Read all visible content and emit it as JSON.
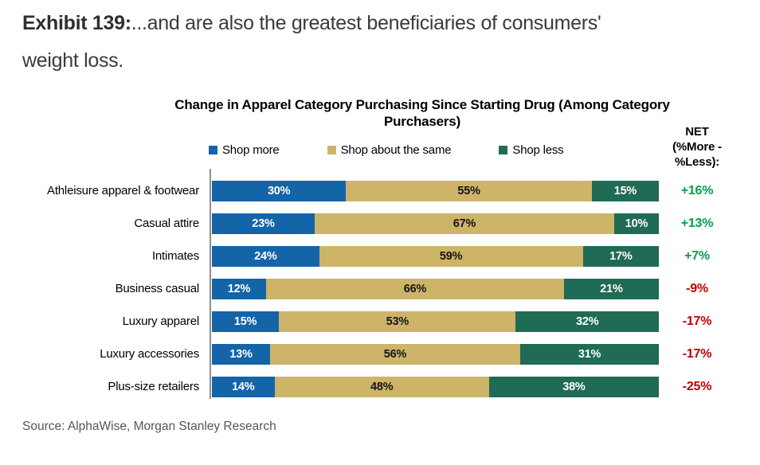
{
  "exhibit": {
    "label": "Exhibit 139:",
    "title_rest": "...and are also the greatest beneficiaries of consumers'\nweight loss."
  },
  "chart": {
    "title": "Change in Apparel Category Purchasing Since Starting Drug (Among Category\nPurchasers)",
    "net_header": "NET\n(%More -\n%Less):",
    "legend": [
      {
        "label": "Shop more",
        "color": "#1464A8"
      },
      {
        "label": "Shop about the same",
        "color": "#CDB468"
      },
      {
        "label": "Shop less",
        "color": "#206B55"
      }
    ]
  },
  "chart_data": {
    "type": "bar",
    "orientation": "horizontal",
    "stacked": true,
    "title": "Change in Apparel Category Purchasing Since Starting Drug (Among Category Purchasers)",
    "unit": "%",
    "xlim": [
      0,
      100
    ],
    "grid": false,
    "legend_position": "top",
    "categories": [
      "Athleisure apparel & footwear",
      "Casual attire",
      "Intimates",
      "Business casual",
      "Luxury apparel",
      "Luxury accessories",
      "Plus-size retailers"
    ],
    "series": [
      {
        "name": "Shop more",
        "color": "#1464A8",
        "values": [
          30,
          23,
          24,
          12,
          15,
          13,
          14
        ]
      },
      {
        "name": "Shop about the same",
        "color": "#CDB468",
        "values": [
          55,
          67,
          59,
          66,
          53,
          56,
          48
        ]
      },
      {
        "name": "Shop less",
        "color": "#206B55",
        "values": [
          15,
          10,
          17,
          21,
          32,
          31,
          38
        ]
      }
    ],
    "net": {
      "label": "NET (%More - %Less):",
      "values": [
        "+16%",
        "+13%",
        "+7%",
        "-9%",
        "-17%",
        "-17%",
        "-25%"
      ]
    }
  },
  "colors": {
    "net_positive": "#00A14B",
    "net_negative": "#C00000",
    "axis_line": "#8f8f8f"
  },
  "source": "Source: AlphaWise, Morgan Stanley Research"
}
